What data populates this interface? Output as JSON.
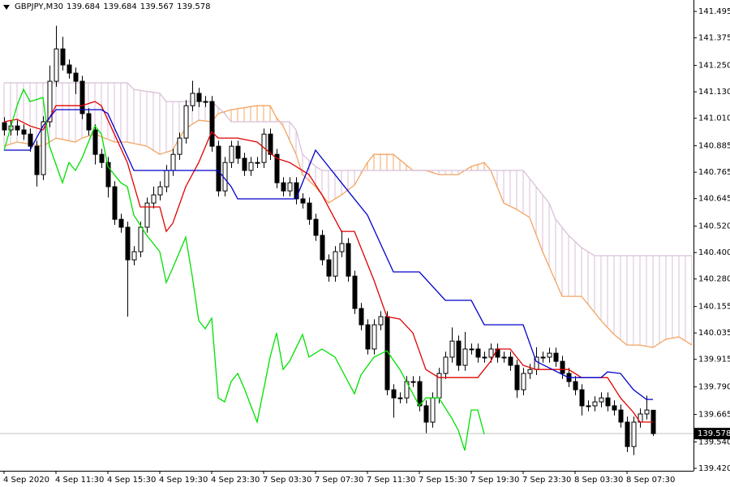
{
  "chart_data": {
    "type": "candlestick",
    "title": "GBPJPY,M30",
    "xlim": [
      -0.625,
      106.25
    ],
    "xticks": [
      {
        "value": 0,
        "label": "4 Sep 2020"
      },
      {
        "value": 8,
        "label": "4 Sep 11:30"
      },
      {
        "value": 16,
        "label": "4 Sep 15:30"
      },
      {
        "value": 24,
        "label": "4 Sep 19:30"
      },
      {
        "value": 32,
        "label": "4 Sep 23:30"
      },
      {
        "value": 40,
        "label": "7 Sep 03:30"
      },
      {
        "value": 48,
        "label": "7 Sep 07:30"
      },
      {
        "value": 56,
        "label": "7 Sep 11:30"
      },
      {
        "value": 64,
        "label": "7 Sep 15:30"
      },
      {
        "value": 72,
        "label": "7 Sep 19:30"
      },
      {
        "value": 80,
        "label": "7 Sep 23:30"
      },
      {
        "value": 88,
        "label": "8 Sep 03:30"
      },
      {
        "value": 96,
        "label": "8 Sep 07:30"
      }
    ],
    "ylim": [
      139.409,
      141.547
    ],
    "yticks": [
      141.495,
      141.375,
      {
        "value": 141.25,
        "label": "141.250"
      },
      {
        "value": 141.13,
        "label": "141.130"
      },
      {
        "value": 141.01,
        "label": "141.010"
      },
      140.885,
      140.765,
      140.645,
      {
        "value": 140.52,
        "label": "140.520"
      },
      {
        "value": 140.4,
        "label": "140.400"
      },
      {
        "value": 140.28,
        "label": "140.280"
      },
      140.155,
      140.035,
      139.915,
      {
        "value": 139.79,
        "label": "139.790"
      },
      139.665,
      {
        "value": 139.54,
        "label": "139.540"
      },
      {
        "value": 139.42,
        "label": "139.420"
      }
    ],
    "up_color": "#ffffff",
    "down_color": "#000000",
    "edge_color": "#000000",
    "price_line": true,
    "price_line_color": "#c0c0c0",
    "open": [
      140.99,
      140.957,
      140.975,
      140.957,
      140.938,
      140.883,
      140.754,
      140.994,
      141.178,
      141.325,
      141.252,
      141.215,
      141.178,
      141.031,
      140.957,
      140.846,
      140.809,
      140.699,
      140.551,
      140.515,
      140.367,
      140.404,
      140.515,
      140.625,
      140.662,
      140.699,
      140.773,
      140.846,
      140.92,
      141.067,
      141.123,
      141.086,
      141.086,
      140.883,
      140.68,
      140.809,
      140.883,
      140.828,
      140.773,
      140.809,
      140.809,
      140.938,
      140.846,
      140.717,
      140.68,
      140.717,
      140.644,
      140.625,
      140.551,
      140.478,
      140.367,
      140.293,
      140.404,
      140.441,
      140.293,
      140.146,
      140.072,
      139.962,
      140.072,
      140.109,
      139.777,
      139.74,
      139.74,
      139.814,
      139.814,
      139.704,
      139.63,
      139.74,
      139.851,
      139.925,
      139.998,
      139.888,
      139.962,
      139.962,
      139.925,
      139.925,
      139.962,
      139.925,
      139.925,
      139.888,
      139.777,
      139.851,
      139.869,
      139.925,
      139.925,
      139.943,
      139.906,
      139.851,
      139.814,
      139.777,
      139.704,
      139.704,
      139.722,
      139.74,
      139.704,
      139.685,
      139.63,
      139.519,
      139.63,
      139.667,
      139.684
    ],
    "high": [
      141.015,
      141.0,
      141.0,
      140.982,
      140.963,
      140.908,
      141.019,
      141.25,
      141.43,
      141.38,
      141.277,
      141.24,
      141.203,
      141.056,
      140.982,
      140.871,
      140.834,
      140.724,
      140.576,
      140.54,
      140.429,
      140.54,
      140.65,
      140.7,
      140.724,
      140.798,
      140.871,
      140.945,
      141.092,
      141.18,
      141.148,
      141.111,
      141.111,
      140.908,
      140.834,
      140.908,
      140.908,
      140.853,
      140.834,
      140.834,
      140.963,
      140.963,
      140.871,
      140.742,
      140.742,
      140.742,
      140.669,
      140.65,
      140.576,
      140.503,
      140.392,
      140.429,
      140.5,
      140.466,
      140.318,
      140.171,
      140.097,
      140.097,
      140.134,
      140.134,
      139.802,
      139.765,
      139.839,
      139.839,
      139.839,
      139.729,
      139.765,
      139.876,
      139.95,
      140.06,
      140.023,
      140.04,
      139.987,
      139.987,
      139.95,
      139.987,
      139.987,
      139.95,
      139.95,
      139.913,
      139.876,
      139.894,
      139.97,
      139.95,
      139.968,
      139.968,
      139.931,
      139.876,
      139.839,
      139.802,
      139.729,
      139.747,
      139.765,
      139.765,
      139.729,
      139.71,
      139.655,
      139.655,
      139.692,
      139.75,
      139.684
    ],
    "low": [
      140.932,
      140.932,
      140.932,
      140.913,
      140.858,
      140.7,
      140.729,
      140.969,
      141.153,
      141.227,
      141.19,
      141.12,
      141.006,
      140.932,
      140.8,
      140.784,
      140.65,
      140.526,
      140.49,
      140.109,
      140.342,
      140.379,
      140.49,
      140.6,
      140.637,
      140.674,
      140.748,
      140.821,
      140.895,
      141.042,
      141.061,
      141.061,
      140.858,
      140.655,
      140.655,
      140.784,
      140.803,
      140.748,
      140.748,
      140.784,
      140.784,
      140.821,
      140.692,
      140.655,
      140.655,
      140.619,
      140.6,
      140.526,
      140.453,
      140.342,
      140.268,
      140.268,
      140.379,
      140.268,
      140.121,
      140.047,
      139.937,
      139.937,
      140.047,
      139.752,
      139.65,
      139.715,
      139.715,
      139.789,
      139.679,
      139.58,
      139.605,
      139.715,
      139.826,
      139.9,
      139.863,
      139.863,
      139.937,
      139.9,
      139.9,
      139.9,
      139.9,
      139.9,
      139.863,
      139.74,
      139.752,
      139.826,
      139.844,
      139.9,
      139.9,
      139.881,
      139.826,
      139.789,
      139.752,
      139.66,
      139.679,
      139.679,
      139.697,
      139.679,
      139.66,
      139.605,
      139.494,
      139.48,
      139.605,
      139.642,
      139.567
    ],
    "close": [
      140.957,
      140.975,
      140.957,
      140.938,
      140.883,
      140.754,
      140.994,
      141.178,
      141.325,
      141.252,
      141.215,
      141.178,
      141.031,
      140.957,
      140.846,
      140.809,
      140.699,
      140.551,
      140.515,
      140.367,
      140.404,
      140.515,
      140.625,
      140.662,
      140.699,
      140.773,
      140.846,
      140.92,
      141.067,
      141.123,
      141.086,
      141.086,
      140.883,
      140.68,
      140.809,
      140.883,
      140.828,
      140.773,
      140.809,
      140.809,
      140.938,
      140.846,
      140.717,
      140.68,
      140.717,
      140.644,
      140.625,
      140.551,
      140.478,
      140.367,
      140.293,
      140.404,
      140.441,
      140.293,
      140.146,
      140.072,
      139.962,
      140.072,
      140.109,
      139.777,
      139.74,
      139.74,
      139.814,
      139.814,
      139.704,
      139.63,
      139.74,
      139.851,
      139.925,
      139.998,
      139.888,
      139.962,
      139.962,
      139.925,
      139.925,
      139.962,
      139.925,
      139.925,
      139.888,
      139.777,
      139.851,
      139.869,
      139.925,
      139.925,
      139.943,
      139.906,
      139.851,
      139.814,
      139.777,
      139.704,
      139.704,
      139.722,
      139.74,
      139.704,
      139.685,
      139.63,
      139.519,
      139.63,
      139.667,
      139.685,
      139.578
    ],
    "cloud": {
      "hatch": true,
      "a": {
        "color": "#f4a460",
        "x": [
          0,
          2,
          6,
          8,
          11,
          12,
          14,
          17,
          19,
          22,
          24,
          26,
          27,
          28,
          30,
          32,
          33,
          35,
          39,
          41,
          42,
          43,
          45,
          46,
          48,
          50,
          52,
          54,
          56,
          57,
          60,
          63,
          65,
          67,
          70,
          72,
          74,
          75,
          77,
          79,
          81,
          83,
          86,
          89,
          92,
          94,
          96,
          98,
          100,
          102,
          104,
          106
        ],
        "values": [
          140.883,
          140.902,
          140.883,
          140.92,
          140.902,
          140.92,
          140.938,
          140.902,
          140.902,
          140.883,
          140.846,
          140.865,
          140.92,
          140.964,
          141.001,
          140.994,
          141.031,
          141.049,
          141.067,
          141.067,
          141.012,
          140.975,
          140.846,
          140.754,
          140.699,
          140.625,
          140.662,
          140.706,
          140.809,
          140.846,
          140.846,
          140.773,
          140.773,
          140.754,
          140.754,
          140.791,
          140.809,
          140.773,
          140.625,
          140.596,
          140.559,
          140.404,
          140.201,
          140.201,
          140.091,
          140.028,
          139.98,
          139.98,
          139.969,
          140.006,
          140.017,
          139.98
        ]
      },
      "b": {
        "color": "#d8bfd8",
        "x": [
          0,
          19,
          20,
          24,
          25,
          32,
          34,
          35,
          44,
          45,
          46,
          48,
          49,
          80,
          82,
          84,
          85,
          87,
          89,
          91,
          106
        ],
        "values": [
          141.171,
          141.171,
          141.141,
          141.123,
          141.086,
          141.086,
          141.031,
          140.994,
          140.994,
          140.957,
          140.846,
          140.791,
          140.773,
          140.773,
          140.699,
          140.625,
          140.551,
          140.478,
          140.422,
          140.386,
          140.386
        ]
      }
    },
    "lines": [
      {
        "color": "#e00000",
        "x": [
          0,
          2,
          4,
          6,
          8,
          12,
          14,
          15,
          17,
          19,
          21,
          24,
          25,
          26,
          28,
          30,
          32,
          33,
          36,
          39,
          42,
          44,
          47,
          49,
          51,
          52,
          54,
          55,
          57,
          59,
          61,
          63,
          65,
          67,
          73,
          75,
          76,
          78,
          80,
          82,
          87,
          89,
          93,
          95,
          97,
          98,
          100
        ],
        "values": [
          140.994,
          141.005,
          140.975,
          140.957,
          141.067,
          141.067,
          141.086,
          141.067,
          140.938,
          140.809,
          140.607,
          140.607,
          140.496,
          140.533,
          140.699,
          140.809,
          140.949,
          140.92,
          140.92,
          140.902,
          140.828,
          140.809,
          140.754,
          140.662,
          140.551,
          140.496,
          140.496,
          140.422,
          140.275,
          140.109,
          140.098,
          140.035,
          139.869,
          139.832,
          139.832,
          139.906,
          139.962,
          139.962,
          139.888,
          139.869,
          139.869,
          139.832,
          139.832,
          139.74,
          139.674,
          139.63,
          139.63
        ]
      },
      {
        "color": "#0000cc",
        "x": [
          0,
          4,
          6,
          8,
          15,
          16,
          20,
          33,
          35,
          36,
          45,
          48,
          50,
          53,
          56,
          58,
          60,
          64,
          68,
          72,
          74,
          80,
          82,
          87,
          92,
          93,
          95,
          97,
          99,
          100
        ],
        "values": [
          140.865,
          140.865,
          140.975,
          141.049,
          141.049,
          141.031,
          140.773,
          140.773,
          140.699,
          140.644,
          140.644,
          140.865,
          140.791,
          140.68,
          140.57,
          140.441,
          140.312,
          140.312,
          140.183,
          140.183,
          140.072,
          140.072,
          139.906,
          139.832,
          139.832,
          139.858,
          139.851,
          139.777,
          139.733,
          139.733
        ]
      },
      {
        "color": "#00e000",
        "x": [
          0,
          2,
          3,
          4,
          6,
          7,
          9,
          10,
          11,
          12,
          14,
          15,
          16,
          18,
          19,
          20,
          22,
          24,
          25,
          26,
          28,
          29,
          30,
          31,
          32,
          33,
          34,
          35,
          36,
          37,
          39,
          40,
          41,
          42,
          43,
          44,
          46,
          47,
          49,
          51,
          53,
          54,
          55,
          57,
          59,
          61,
          62,
          64,
          65,
          67,
          69,
          70,
          71,
          72,
          73,
          74
        ],
        "values": [
          140.865,
          141.067,
          141.141,
          141.086,
          141.104,
          140.883,
          140.717,
          140.809,
          140.773,
          140.828,
          140.975,
          140.938,
          140.791,
          140.717,
          140.699,
          140.57,
          140.478,
          140.404,
          140.264,
          140.33,
          140.47,
          140.293,
          140.091,
          140.054,
          140.102,
          139.74,
          139.722,
          139.814,
          139.851,
          139.785,
          139.63,
          139.777,
          139.925,
          140.035,
          139.869,
          139.906,
          140.028,
          139.925,
          139.962,
          139.925,
          139.814,
          139.759,
          139.844,
          139.925,
          139.954,
          139.869,
          139.814,
          139.704,
          139.74,
          139.74,
          139.648,
          139.593,
          139.501,
          139.685,
          139.685,
          139.575
        ]
      }
    ]
  }
}
